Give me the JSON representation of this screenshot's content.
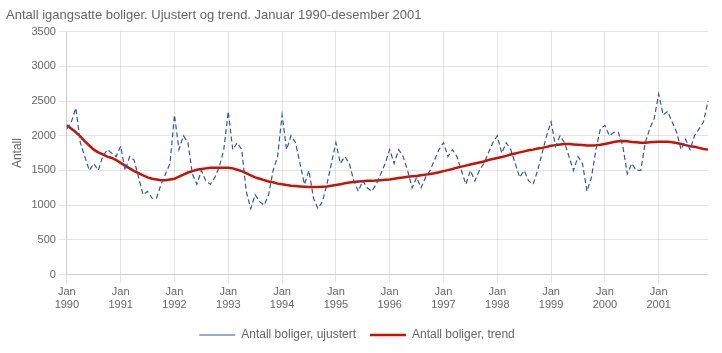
{
  "chart_data": {
    "type": "line",
    "title": "Antall igangsatte boliger. Ujustert og trend. Januar 1990-desember 2001",
    "ylabel": "Antall",
    "categories": [
      "Jan\n1990",
      null,
      null,
      null,
      null,
      null,
      null,
      null,
      null,
      null,
      null,
      null,
      "Jan\n1991",
      null,
      null,
      null,
      null,
      null,
      null,
      null,
      null,
      null,
      null,
      null,
      "Jan\n1992",
      null,
      null,
      null,
      null,
      null,
      null,
      null,
      null,
      null,
      null,
      null,
      "Jan\n1993",
      null,
      null,
      null,
      null,
      null,
      null,
      null,
      null,
      null,
      null,
      null,
      "Jan\n1994",
      null,
      null,
      null,
      null,
      null,
      null,
      null,
      null,
      null,
      null,
      null,
      "Jan\n1995",
      null,
      null,
      null,
      null,
      null,
      null,
      null,
      null,
      null,
      null,
      null,
      "Jan\n1996",
      null,
      null,
      null,
      null,
      null,
      null,
      null,
      null,
      null,
      null,
      null,
      "Jan\n1997",
      null,
      null,
      null,
      null,
      null,
      null,
      null,
      null,
      null,
      null,
      null,
      "Jan\n1998",
      null,
      null,
      null,
      null,
      null,
      null,
      null,
      null,
      null,
      null,
      null,
      "Jan\n1999",
      null,
      null,
      null,
      null,
      null,
      null,
      null,
      null,
      null,
      null,
      null,
      "Jan\n2000",
      null,
      null,
      null,
      null,
      null,
      null,
      null,
      null,
      null,
      null,
      null,
      "Jan\n2001",
      null,
      null,
      null,
      null,
      null,
      null,
      null,
      null,
      null,
      null,
      null
    ],
    "series": [
      {
        "name": "Antall boliger, ujustert",
        "color": "#3355aa",
        "line_style": "dashed",
        "values": [
          2100,
          2200,
          2400,
          1900,
          1700,
          1500,
          1600,
          1500,
          1700,
          1800,
          1750,
          1700,
          1850,
          1500,
          1700,
          1650,
          1400,
          1150,
          1200,
          1100,
          1100,
          1300,
          1450,
          1600,
          2300,
          1800,
          2000,
          1900,
          1450,
          1300,
          1500,
          1350,
          1300,
          1400,
          1550,
          1800,
          2350,
          1800,
          1900,
          1800,
          1200,
          950,
          1150,
          1050,
          1000,
          1150,
          1500,
          1700,
          2300,
          1800,
          2000,
          1900,
          1600,
          1300,
          1500,
          1100,
          950,
          1050,
          1300,
          1600,
          1900,
          1600,
          1700,
          1600,
          1350,
          1200,
          1350,
          1250,
          1200,
          1300,
          1450,
          1600,
          1800,
          1600,
          1800,
          1700,
          1500,
          1250,
          1400,
          1250,
          1400,
          1500,
          1650,
          1800,
          1900,
          1700,
          1800,
          1700,
          1500,
          1300,
          1500,
          1350,
          1500,
          1600,
          1750,
          1900,
          2000,
          1750,
          1900,
          1800,
          1600,
          1400,
          1500,
          1350,
          1300,
          1500,
          1750,
          2000,
          2200,
          1850,
          2000,
          1900,
          1700,
          1500,
          1700,
          1600,
          1200,
          1400,
          1800,
          2100,
          2150,
          2000,
          2050,
          2050,
          1850,
          1450,
          1600,
          1500,
          1500,
          1900,
          2100,
          2250,
          2600,
          2300,
          2350,
          2200,
          2050,
          1800,
          1950,
          1800,
          2000,
          2100,
          2200,
          2500
        ]
      },
      {
        "name": "Antall boliger, trend",
        "color": "#cc1100",
        "line_style": "solid",
        "values": [
          2150,
          2100,
          2050,
          1990,
          1920,
          1860,
          1800,
          1760,
          1730,
          1700,
          1680,
          1650,
          1610,
          1570,
          1530,
          1490,
          1460,
          1430,
          1400,
          1380,
          1370,
          1360,
          1360,
          1370,
          1380,
          1410,
          1440,
          1470,
          1490,
          1510,
          1520,
          1530,
          1540,
          1540,
          1540,
          1540,
          1540,
          1530,
          1510,
          1490,
          1460,
          1430,
          1400,
          1380,
          1360,
          1340,
          1330,
          1310,
          1300,
          1290,
          1280,
          1275,
          1270,
          1265,
          1260,
          1260,
          1260,
          1265,
          1270,
          1280,
          1290,
          1300,
          1315,
          1325,
          1335,
          1340,
          1345,
          1350,
          1350,
          1355,
          1360,
          1365,
          1370,
          1380,
          1390,
          1400,
          1410,
          1415,
          1420,
          1430,
          1440,
          1450,
          1460,
          1475,
          1490,
          1505,
          1520,
          1540,
          1555,
          1570,
          1585,
          1600,
          1615,
          1630,
          1650,
          1665,
          1680,
          1695,
          1710,
          1730,
          1745,
          1760,
          1775,
          1790,
          1800,
          1815,
          1825,
          1840,
          1855,
          1865,
          1875,
          1880,
          1880,
          1875,
          1870,
          1865,
          1860,
          1860,
          1862,
          1870,
          1880,
          1895,
          1910,
          1920,
          1925,
          1920,
          1910,
          1905,
          1900,
          1900,
          1905,
          1910,
          1915,
          1915,
          1912,
          1905,
          1895,
          1880,
          1865,
          1850,
          1840,
          1825,
          1810,
          1800
        ]
      }
    ],
    "ylim": [
      0,
      3500
    ],
    "yticks": [
      0,
      500,
      1000,
      1500,
      2000,
      2500,
      3000,
      3500
    ],
    "grid": true,
    "legend": "bottom"
  }
}
